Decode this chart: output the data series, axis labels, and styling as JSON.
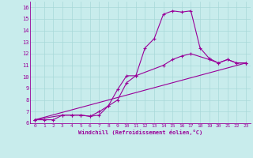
{
  "xlabel": "Windchill (Refroidissement éolien,°C)",
  "bg_color": "#c8ecec",
  "line_color": "#990099",
  "grid_color": "#a8d8d8",
  "xlim": [
    -0.5,
    23.5
  ],
  "ylim": [
    6,
    16.5
  ],
  "xticks": [
    0,
    1,
    2,
    3,
    4,
    5,
    6,
    7,
    8,
    9,
    10,
    11,
    12,
    13,
    14,
    15,
    16,
    17,
    18,
    19,
    20,
    21,
    22,
    23
  ],
  "yticks": [
    6,
    7,
    8,
    9,
    10,
    11,
    12,
    13,
    14,
    15,
    16
  ],
  "line1_x": [
    0,
    1,
    2,
    3,
    4,
    5,
    6,
    7,
    8,
    9,
    10,
    11,
    12,
    13,
    14,
    15,
    16,
    17,
    18,
    19,
    20,
    21,
    22,
    23
  ],
  "line1_y": [
    6.3,
    6.3,
    6.3,
    6.7,
    6.7,
    6.7,
    6.6,
    6.7,
    7.5,
    8.9,
    10.1,
    10.1,
    12.5,
    13.3,
    15.4,
    15.7,
    15.6,
    15.7,
    12.5,
    11.6,
    11.2,
    11.5,
    11.2,
    11.2
  ],
  "line2_x": [
    0,
    3,
    4,
    5,
    6,
    7,
    8,
    9,
    10,
    11,
    14,
    15,
    16,
    17,
    19,
    20,
    21,
    22,
    23
  ],
  "line2_y": [
    6.3,
    6.7,
    6.7,
    6.7,
    6.6,
    7.0,
    7.5,
    8.0,
    9.5,
    10.1,
    11.0,
    11.5,
    11.8,
    12.0,
    11.5,
    11.2,
    11.5,
    11.2,
    11.2
  ],
  "line3_x": [
    0,
    23
  ],
  "line3_y": [
    6.3,
    11.2
  ]
}
